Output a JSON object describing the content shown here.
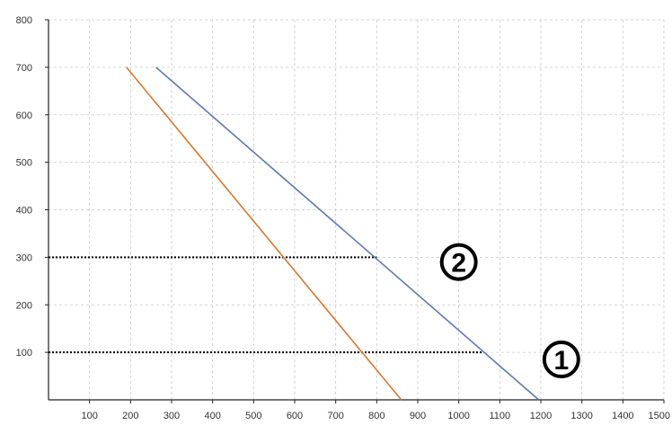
{
  "chart_data": {
    "type": "line",
    "title": "",
    "xlabel": "",
    "ylabel": "",
    "xlim": [
      0,
      1500
    ],
    "ylim": [
      0,
      800
    ],
    "x_ticks": [
      "100",
      "200",
      "300",
      "400",
      "500",
      "600",
      "700",
      "800",
      "900",
      "1000",
      "1100",
      "1200",
      "1300",
      "1400",
      "1500"
    ],
    "y_ticks": [
      "100",
      "200",
      "300",
      "400",
      "500",
      "600",
      "700",
      "800"
    ],
    "grid": true,
    "series": [
      {
        "color": "#5b7bb5",
        "points": [
          [
            262,
            700
          ],
          [
            1195,
            0
          ]
        ]
      },
      {
        "color": "#d9782f",
        "points": [
          [
            190,
            700
          ],
          [
            860,
            0
          ]
        ]
      }
    ],
    "reference_lines": [
      {
        "y": 300,
        "x_from": 0,
        "x_to": 800,
        "style": "dotted"
      },
      {
        "y": 100,
        "x_from": 0,
        "x_to": 1060,
        "style": "dotted"
      }
    ],
    "annotations": [
      {
        "text": "2",
        "x": 1000,
        "y": 290,
        "style": "circled"
      },
      {
        "text": "1",
        "x": 1250,
        "y": 85,
        "style": "circled"
      }
    ]
  }
}
